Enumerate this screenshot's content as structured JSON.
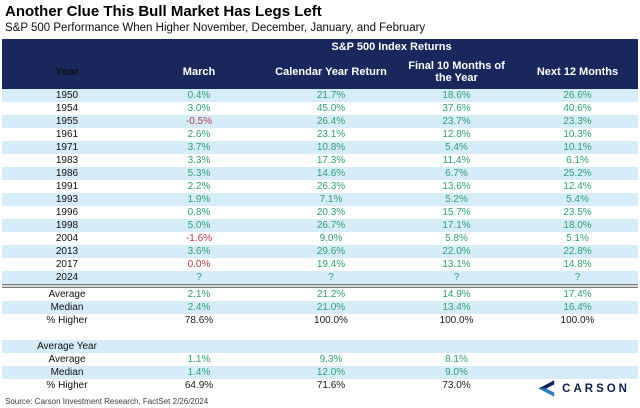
{
  "header": {
    "title": "Another Clue This Bull Market Has Legs Left",
    "subtitle": "S&P 500 Performance When Higher November, December, January, and February"
  },
  "chart_data": {
    "type": "table",
    "title": "Another Clue This Bull Market Has Legs Left",
    "subtitle": "S&P 500 Performance When Higher November, December, January, and February",
    "group_header": "S&P 500 Index Returns",
    "columns": [
      "Year",
      "March",
      "Calendar Year Return",
      "Final 10 Months of the Year",
      "Next 12 Months"
    ],
    "rows": [
      [
        "1950",
        "0.4%",
        "21.7%",
        "18.6%",
        "26.6%"
      ],
      [
        "1954",
        "3.0%",
        "45.0%",
        "37.6%",
        "40.6%"
      ],
      [
        "1955",
        "-0.5%",
        "26.4%",
        "23.7%",
        "23.3%"
      ],
      [
        "1961",
        "2.6%",
        "23.1%",
        "12.8%",
        "10.3%"
      ],
      [
        "1971",
        "3.7%",
        "10.8%",
        "5.4%",
        "10.1%"
      ],
      [
        "1983",
        "3.3%",
        "17.3%",
        "11.4%",
        "6.1%"
      ],
      [
        "1986",
        "5.3%",
        "14.6%",
        "6.7%",
        "25.2%"
      ],
      [
        "1991",
        "2.2%",
        "26.3%",
        "13.6%",
        "12.4%"
      ],
      [
        "1993",
        "1.9%",
        "7.1%",
        "5.2%",
        "5.4%"
      ],
      [
        "1996",
        "0.8%",
        "20.3%",
        "15.7%",
        "23.5%"
      ],
      [
        "1998",
        "5.0%",
        "26.7%",
        "17.1%",
        "18.0%"
      ],
      [
        "2004",
        "-1.6%",
        "9.0%",
        "5.8%",
        "5.1%"
      ],
      [
        "2013",
        "3.6%",
        "29.6%",
        "22.0%",
        "22.8%"
      ],
      [
        "2017",
        "0.0%",
        "19.4%",
        "13.1%",
        "14.8%"
      ],
      [
        "2024",
        "?",
        "?",
        "?",
        "?"
      ]
    ],
    "summary_rows": [
      [
        "Average",
        "2.1%",
        "21.2%",
        "14.9%",
        "17.4%"
      ],
      [
        "Median",
        "2.4%",
        "21.0%",
        "13.4%",
        "16.4%"
      ],
      [
        "% Higher",
        "78.6%",
        "100.0%",
        "100.0%",
        "100.0%"
      ]
    ],
    "average_year_rows": [
      [
        "Average Year",
        "",
        "",
        "",
        ""
      ],
      [
        "Average",
        "1.1%",
        "9.3%",
        "8.1%",
        ""
      ],
      [
        "Median",
        "1.4%",
        "12.0%",
        "9.0%",
        ""
      ],
      [
        "% Higher",
        "64.9%",
        "71.6%",
        "73.0%",
        ""
      ]
    ],
    "negative_march_years": [
      "1955",
      "2004",
      "2017"
    ]
  },
  "footer": {
    "source": "Source: Carson Investment Research, FactSet 2/26/2024",
    "logo_text": "CARSON"
  },
  "colors": {
    "navy": "#19275c",
    "stripe": "#d6ecf8",
    "green": "#30a173",
    "red": "#b03b4c",
    "logo_dark": "#13265c",
    "logo_light": "#2e7ec5"
  }
}
